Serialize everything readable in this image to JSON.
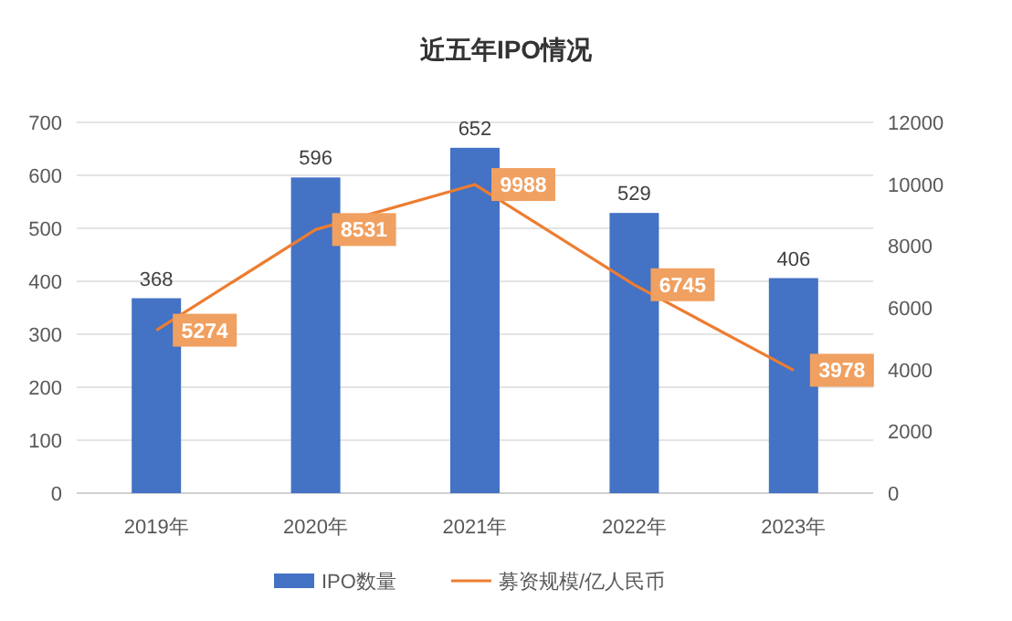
{
  "chart_data": {
    "type": "bar",
    "title": "近五年IPO情况",
    "categories": [
      "2019年",
      "2020年",
      "2021年",
      "2022年",
      "2023年"
    ],
    "series": [
      {
        "name": "IPO数量",
        "color": "#4472c4",
        "values": [
          368,
          596,
          652,
          529,
          406
        ]
      },
      {
        "name": "募资规模/亿人民币",
        "type": "line",
        "axis": "y2",
        "color": "#ed7d31",
        "values": [
          5274,
          8531,
          9988,
          6745,
          3978
        ]
      }
    ],
    "ylim": [
      0,
      700
    ],
    "yticks": [
      0,
      100,
      200,
      300,
      400,
      500,
      600,
      700
    ],
    "y2lim": [
      0,
      12000
    ],
    "y2ticks": [
      0,
      2000,
      4000,
      6000,
      8000,
      10000,
      12000
    ],
    "grid": "y",
    "legend": "bottom",
    "data_labels": true
  }
}
